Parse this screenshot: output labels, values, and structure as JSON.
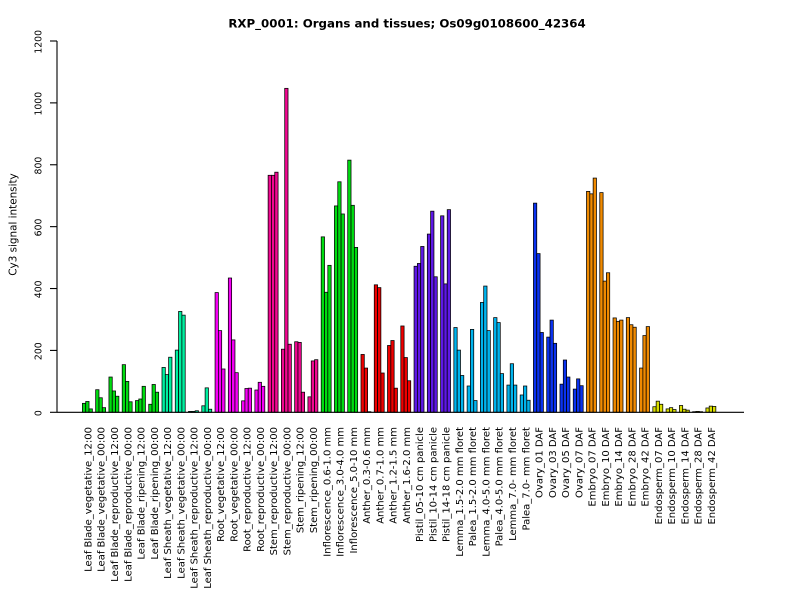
{
  "chart_data": {
    "type": "bar",
    "title": "RXP_0001: Organs and tissues; Os09g0108600_42364",
    "ylabel": "Cy3 signal intensity",
    "xlabel": "",
    "ylim": [
      0,
      1200
    ],
    "yticks": [
      0,
      200,
      400,
      600,
      800,
      1000,
      1200
    ],
    "grid": false,
    "legend": false,
    "bars_per_group": 3,
    "palette": {
      "leaf_blade": "#00DC10",
      "leaf_sheath": "#00EFA0",
      "root": "#F500F5",
      "stem": "#F00890",
      "inflorescence": "#00DC10",
      "anther": "#EE0000",
      "pistil": "#5E18E6",
      "lemma_palea": "#00B4EE",
      "ovary": "#0A32F0",
      "embryo": "#F08A00",
      "endosperm": "#DADF00"
    },
    "bar_outline_color": "#000000",
    "axis_color": "#000000",
    "groups": [
      {
        "label": "Leaf Blade_vegetative_12:00",
        "tissue": "leaf_blade",
        "values": [
          29,
          35,
          11
        ]
      },
      {
        "label": "Leaf Blade_vegetative_00:00",
        "tissue": "leaf_blade",
        "values": [
          73,
          47,
          15
        ]
      },
      {
        "label": "Leaf Blade_reproductive_12:00",
        "tissue": "leaf_blade",
        "values": [
          114,
          69,
          52
        ]
      },
      {
        "label": "Leaf Blade_reproductive_00:00",
        "tissue": "leaf_blade",
        "values": [
          154,
          100,
          34
        ]
      },
      {
        "label": "Leaf Blade_ripening_12:00",
        "tissue": "leaf_blade",
        "values": [
          38,
          43,
          84
        ]
      },
      {
        "label": "Leaf Blade_ripening_00:00",
        "tissue": "leaf_blade",
        "values": [
          26,
          90,
          65
        ]
      },
      {
        "label": "Leaf Sheath_vegetative_12:00",
        "tissue": "leaf_sheath",
        "values": [
          145,
          122,
          178
        ]
      },
      {
        "label": "Leaf Sheath_vegetative_00:00",
        "tissue": "leaf_sheath",
        "values": [
          201,
          326,
          314
        ]
      },
      {
        "label": "Leaf Sheath_reproductive_12:00",
        "tissue": "leaf_sheath",
        "values": [
          3,
          3,
          5
        ]
      },
      {
        "label": "Leaf Sheath_reproductive_00:00",
        "tissue": "leaf_sheath",
        "values": [
          21,
          79,
          10
        ]
      },
      {
        "label": "Root_vegetative_12:00",
        "tissue": "root",
        "values": [
          387,
          264,
          140
        ]
      },
      {
        "label": "Root_vegetative_00:00",
        "tissue": "root",
        "values": [
          434,
          234,
          128
        ]
      },
      {
        "label": "Root_reproductive_12:00",
        "tissue": "root",
        "values": [
          37,
          77,
          78
        ]
      },
      {
        "label": "Root_reproductive_00:00",
        "tissue": "root",
        "values": [
          72,
          97,
          84
        ]
      },
      {
        "label": "Stem_reproductive_12:00",
        "tissue": "stem",
        "values": [
          766,
          766,
          776
        ]
      },
      {
        "label": "Stem_reproductive_00:00",
        "tissue": "stem",
        "values": [
          204,
          1047,
          220
        ]
      },
      {
        "label": "Stem_ripening_12:00",
        "tissue": "stem",
        "values": [
          228,
          226,
          65
        ]
      },
      {
        "label": "Stem_ripening_00:00",
        "tissue": "stem",
        "values": [
          50,
          166,
          170
        ]
      },
      {
        "label": "Inflorescence_0.6-1.0 mm",
        "tissue": "inflorescence",
        "values": [
          567,
          388,
          475
        ]
      },
      {
        "label": "Inflorescence_3.0-4.0 mm",
        "tissue": "inflorescence",
        "values": [
          667,
          745,
          641
        ]
      },
      {
        "label": "Inflorescence_5.0-10 mm",
        "tissue": "inflorescence",
        "values": [
          815,
          669,
          533
        ]
      },
      {
        "label": "Anther_0.3-0.6 mm",
        "tissue": "anther",
        "values": [
          187,
          143,
          2
        ]
      },
      {
        "label": "Anther_0.7-1.0 mm",
        "tissue": "anther",
        "values": [
          412,
          403,
          127
        ]
      },
      {
        "label": "Anther_1.2-1.5 mm",
        "tissue": "anther",
        "values": [
          216,
          232,
          78
        ]
      },
      {
        "label": "Anther_1.6-2.0 mm",
        "tissue": "anther",
        "values": [
          279,
          177,
          102
        ]
      },
      {
        "label": "Pistil_05-10 cm panicle",
        "tissue": "pistil",
        "values": [
          472,
          481,
          536
        ]
      },
      {
        "label": "Pistil_10-14 cm panicle",
        "tissue": "pistil",
        "values": [
          576,
          650,
          438
        ]
      },
      {
        "label": "Pistil_14-18 cm panicle",
        "tissue": "pistil",
        "values": [
          635,
          415,
          655
        ]
      },
      {
        "label": "Lemma_1.5-2.0 mm floret",
        "tissue": "lemma_palea",
        "values": [
          274,
          201,
          119
        ]
      },
      {
        "label": "Palea_1.5-2.0 mm floret",
        "tissue": "lemma_palea",
        "values": [
          85,
          268,
          38
        ]
      },
      {
        "label": "Lemma_4.0-5.0 mm floret",
        "tissue": "lemma_palea",
        "values": [
          355,
          408,
          264
        ]
      },
      {
        "label": "Palea_4.0-5.0 mm floret",
        "tissue": "lemma_palea",
        "values": [
          306,
          290,
          125
        ]
      },
      {
        "label": "Lemma_7.0- mm floret",
        "tissue": "lemma_palea",
        "values": [
          88,
          157,
          88
        ]
      },
      {
        "label": "Palea_7.0- mm floret",
        "tissue": "lemma_palea",
        "values": [
          56,
          85,
          39
        ]
      },
      {
        "label": "Ovary_01 DAF",
        "tissue": "ovary",
        "values": [
          676,
          513,
          258
        ]
      },
      {
        "label": "Ovary_03 DAF",
        "tissue": "ovary",
        "values": [
          243,
          298,
          223
        ]
      },
      {
        "label": "Ovary_05 DAF",
        "tissue": "ovary",
        "values": [
          91,
          169,
          114
        ]
      },
      {
        "label": "Ovary_07 DAF",
        "tissue": "ovary",
        "values": [
          75,
          108,
          86
        ]
      },
      {
        "label": "Embryo_07 DAF",
        "tissue": "embryo",
        "values": [
          714,
          706,
          757
        ]
      },
      {
        "label": "Embryo_10 DAF",
        "tissue": "embryo",
        "values": [
          710,
          424,
          451
        ]
      },
      {
        "label": "Embryo_14 DAF",
        "tissue": "embryo",
        "values": [
          305,
          294,
          298
        ]
      },
      {
        "label": "Embryo_28 DAF",
        "tissue": "embryo",
        "values": [
          306,
          283,
          275
        ]
      },
      {
        "label": "Embryo_42 DAF",
        "tissue": "embryo",
        "values": [
          143,
          248,
          277
        ]
      },
      {
        "label": "Endosperm_07 DAF",
        "tissue": "endosperm",
        "values": [
          18,
          36,
          26
        ]
      },
      {
        "label": "Endosperm_10 DAF",
        "tissue": "endosperm",
        "values": [
          11,
          15,
          9
        ]
      },
      {
        "label": "Endosperm_14 DAF",
        "tissue": "endosperm",
        "values": [
          22,
          10,
          7
        ]
      },
      {
        "label": "Endosperm_28 DAF",
        "tissue": "endosperm",
        "values": [
          2,
          3,
          2
        ]
      },
      {
        "label": "Endosperm_42 DAF",
        "tissue": "endosperm",
        "values": [
          14,
          20,
          19
        ]
      }
    ]
  }
}
